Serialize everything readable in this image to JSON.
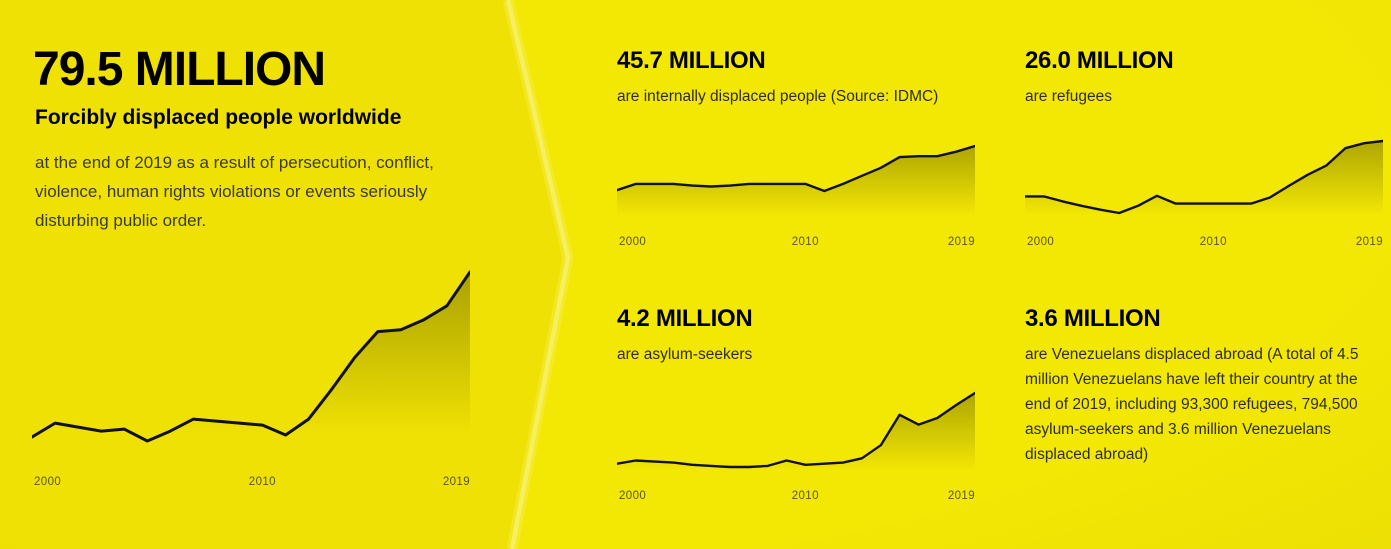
{
  "hero": {
    "value": "79.5 MILLION",
    "title": "Forcibly displaced people worldwide",
    "description": "at the end of 2019 as a result of persecution, conflict, violence, human rights violations or events seriously disturbing public order."
  },
  "stats": [
    {
      "id": "idp",
      "value": "45.7 MILLION",
      "label": "are internally displaced people (Source: IDMC)"
    },
    {
      "id": "refugees",
      "value": "26.0 MILLION",
      "label": "are refugees"
    },
    {
      "id": "asylum",
      "value": "4.2 MILLION",
      "label": "are asylum-seekers"
    },
    {
      "id": "venezuela",
      "value": "3.6 MILLION",
      "label": "are Venezuelans displaced abroad (A total of 4.5 million Venezuelans have left their country at the end of 2019, including 93,300 refugees, 794,500 asylum-seekers and 3.6 million Venezuelans displaced abroad)"
    }
  ],
  "axis_labels": [
    "2000",
    "2010",
    "2019"
  ],
  "colors": {
    "background_left": "#EFE103",
    "background_right": "#F3E704",
    "divider_stroke": "#F6F05E",
    "divider_glow": "rgba(250,245,130,0.28)",
    "chart_line": "#111111",
    "chart_fill": "#1a1a00",
    "heading_text": "#000000",
    "body_text": "#3a3a3a",
    "stat_label_text": "#2d2d2d",
    "axis_label_text": "#5a5820"
  },
  "chart_data": [
    {
      "id": "hero",
      "type": "area",
      "title": "Forcibly displaced people worldwide (millions)",
      "x": [
        2000,
        2001,
        2002,
        2003,
        2004,
        2005,
        2006,
        2007,
        2008,
        2009,
        2010,
        2011,
        2012,
        2013,
        2014,
        2015,
        2016,
        2017,
        2018,
        2019
      ],
      "values": [
        38,
        41.5,
        40.5,
        39.5,
        40,
        37,
        39.5,
        42.5,
        42,
        41.5,
        41,
        38.5,
        42.5,
        50,
        58,
        64.5,
        65,
        67.5,
        71,
        79.5
      ],
      "xticks": [
        "2000",
        "2010",
        "2019"
      ],
      "ylim": [
        37,
        79.5
      ],
      "grid": false,
      "legend": false,
      "pad_top": 7,
      "pad_bottom": 21,
      "stroke_width": 3
    },
    {
      "id": "idp",
      "type": "area",
      "title": "Internally displaced people (millions)",
      "x": [
        2000,
        2001,
        2002,
        2003,
        2004,
        2005,
        2006,
        2007,
        2008,
        2009,
        2010,
        2011,
        2012,
        2013,
        2014,
        2015,
        2016,
        2017,
        2018,
        2019
      ],
      "values": [
        21,
        24.5,
        24.5,
        24.5,
        23.5,
        23,
        23.5,
        24.5,
        24.5,
        24.5,
        24.5,
        20.5,
        24.5,
        29,
        33.5,
        39.5,
        40,
        40,
        42.5,
        45.7
      ],
      "xticks": [
        "2000",
        "2010",
        "2019"
      ],
      "ylim": [
        20.5,
        45.7
      ],
      "grid": false,
      "legend": false,
      "pad_top": 6,
      "pad_bottom": 37,
      "stroke_width": 2.4
    },
    {
      "id": "refugees",
      "type": "area",
      "title": "Refugees (millions)",
      "x": [
        2000,
        2001,
        2002,
        2003,
        2004,
        2005,
        2006,
        2007,
        2008,
        2009,
        2010,
        2011,
        2012,
        2013,
        2014,
        2015,
        2016,
        2017,
        2018,
        2019
      ],
      "values": [
        16,
        16,
        15.1,
        14.3,
        13.6,
        13,
        14.3,
        16.1,
        14.7,
        14.7,
        14.7,
        14.7,
        14.7,
        15.8,
        17.9,
        19.9,
        21.6,
        24.7,
        25.6,
        26
      ],
      "xticks": [
        "2000",
        "2010",
        "2019"
      ],
      "ylim": [
        13,
        26
      ],
      "grid": false,
      "legend": false,
      "pad_top": 3,
      "pad_bottom": 15,
      "stroke_width": 2.4
    },
    {
      "id": "asylum",
      "type": "area",
      "title": "Asylum-seekers (millions)",
      "x": [
        2000,
        2001,
        2002,
        2003,
        2004,
        2005,
        2006,
        2007,
        2008,
        2009,
        2010,
        2011,
        2012,
        2013,
        2014,
        2015,
        2016,
        2017,
        2018,
        2019
      ],
      "values": [
        0.95,
        1.1,
        1.05,
        1.0,
        0.9,
        0.85,
        0.8,
        0.8,
        0.85,
        1.1,
        0.9,
        0.95,
        1.0,
        1.2,
        1.8,
        3.2,
        2.75,
        3.05,
        3.65,
        4.2
      ],
      "xticks": [
        "2000",
        "2010",
        "2019"
      ],
      "ylim": [
        0.8,
        4.2
      ],
      "grid": false,
      "legend": false,
      "pad_top": 5,
      "pad_bottom": 18,
      "stroke_width": 2.4
    }
  ]
}
